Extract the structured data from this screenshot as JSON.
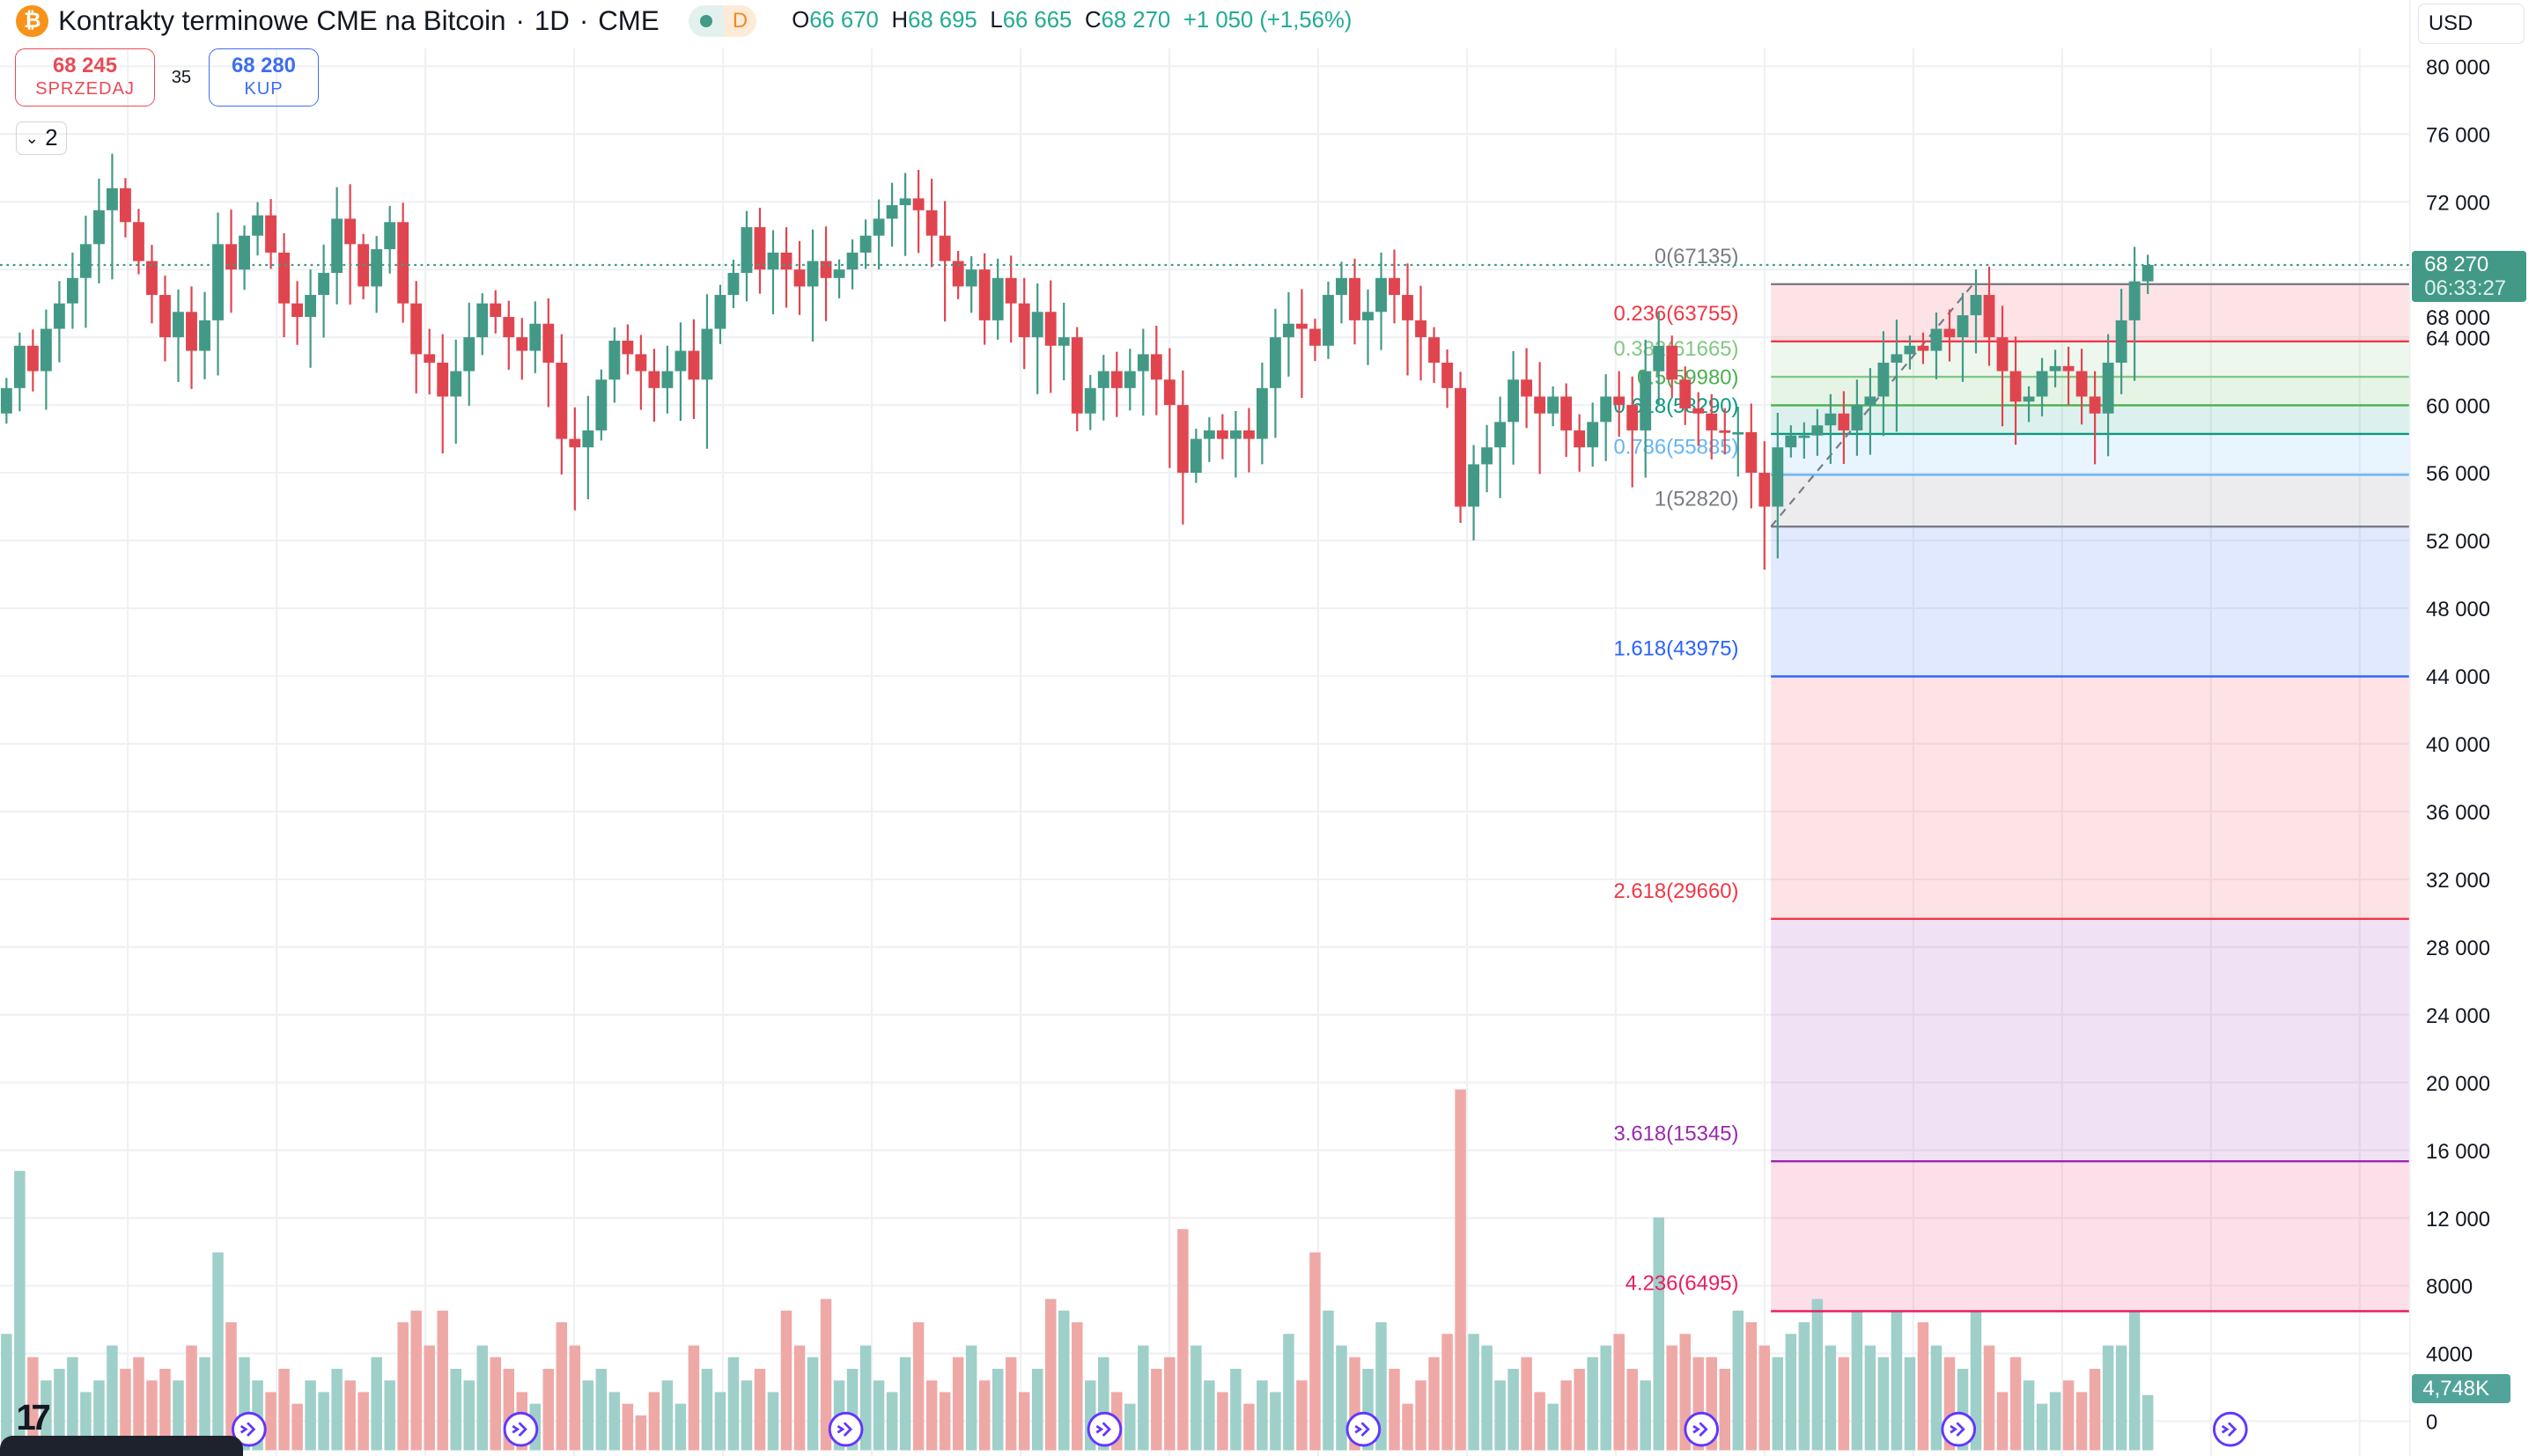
{
  "header": {
    "title": "Kontrakty terminowe CME na Bitcoin",
    "interval": "1D",
    "exchange": "CME",
    "separator": "·",
    "badge_d": "D",
    "ohlc": {
      "o_label": "O",
      "o": "66 670",
      "h_label": "H",
      "h": "68 695",
      "l_label": "L",
      "l": "66 665",
      "c_label": "C",
      "c": "68 270",
      "change": "+1 050 (+1,56%)"
    }
  },
  "trade": {
    "sell_price": "68 245",
    "sell_label": "SPRZEDAJ",
    "spread": "35",
    "buy_price": "68 280",
    "buy_label": "KUP"
  },
  "indicators_toggle": {
    "count": "2"
  },
  "currency": "USD",
  "price_tag": {
    "price": "68 270",
    "countdown": "06:33:27"
  },
  "volume_tag": "4,748K",
  "colors": {
    "up": "#429a86",
    "down": "#e0454f",
    "vol_up": "#9fcfc9",
    "vol_down": "#eea9a6",
    "event": "#6236ff"
  },
  "chart_data": {
    "type": "candlestick",
    "title": "Kontrakty terminowe CME na Bitcoin · 1D · CME",
    "ylim": [
      0,
      80000
    ],
    "y_ticks": [
      "80 000",
      "76 000",
      "72 000",
      "68 000",
      "64 000",
      "60 000",
      "56 000",
      "52 000",
      "48 000",
      "44 000",
      "40 000",
      "36 000",
      "32 000",
      "28 000",
      "24 000",
      "20 000",
      "16 000",
      "12 000",
      "8000",
      "4000",
      "0"
    ],
    "y_tick_values": [
      80000,
      76000,
      72000,
      68000,
      64000,
      60000,
      56000,
      52000,
      48000,
      44000,
      40000,
      36000,
      32000,
      28000,
      24000,
      20000,
      16000,
      12000,
      8000,
      4000,
      0
    ],
    "last_price": 68270,
    "close_k": [
      61.0,
      63.5,
      62.0,
      64.5,
      66.0,
      67.5,
      69.5,
      71.5,
      72.8,
      70.8,
      68.5,
      66.5,
      64.0,
      65.5,
      63.2,
      65.0,
      69.5,
      68.0,
      70.0,
      71.2,
      69.0,
      66.0,
      65.2,
      66.5,
      67.8,
      71.0,
      69.5,
      67.0,
      69.2,
      70.8,
      66.0,
      63.0,
      62.5,
      60.5,
      62.0,
      64.0,
      66.0,
      65.2,
      64.0,
      63.2,
      64.8,
      62.5,
      58.0,
      57.5,
      58.5,
      61.5,
      63.8,
      63.0,
      62.0,
      61.0,
      62.0,
      63.2,
      61.5,
      64.5,
      66.5,
      67.8,
      70.5,
      68.0,
      69.0,
      68.0,
      67.0,
      68.5,
      67.5,
      68.0,
      69.0,
      70.0,
      71.0,
      71.8,
      72.2,
      71.5,
      70.0,
      68.5,
      67.0,
      68.0,
      65.0,
      67.5,
      66.0,
      64.0,
      65.5,
      63.5,
      64.0,
      59.5,
      61.0,
      62.0,
      61.0,
      62.0,
      63.0,
      61.5,
      60.0,
      56.0,
      58.0,
      58.5,
      58.0,
      58.5,
      58.0,
      61.0,
      64.0,
      64.8,
      64.5,
      63.5,
      66.5,
      67.5,
      65.0,
      65.5,
      67.5,
      66.5,
      65.0,
      64.0,
      62.5,
      61.0,
      54.0,
      56.5,
      57.5,
      59.0,
      61.5,
      60.5,
      59.5,
      60.5,
      58.5,
      57.5,
      59.0,
      60.5,
      60.0,
      58.5,
      62.0,
      63.5,
      61.5,
      59.8,
      59.5,
      58.5,
      58.4,
      58.4,
      56.0,
      54.0,
      57.5,
      58.2,
      58.2,
      58.8,
      59.5,
      58.5,
      60.0,
      60.5,
      62.5,
      63.0,
      63.5,
      63.2,
      64.5,
      64.0,
      65.3,
      66.5,
      64.0,
      62.0,
      60.2,
      60.5,
      62.0,
      62.3,
      62.0,
      60.5,
      59.5,
      62.5,
      65.0,
      67.3,
      68.27
    ],
    "volume_k": [
      10,
      24,
      8,
      6,
      7,
      8,
      5,
      6,
      9,
      7,
      8,
      6,
      7,
      6,
      9,
      8,
      17,
      11,
      8,
      6,
      5,
      7,
      4,
      6,
      5,
      7,
      6,
      5,
      8,
      6,
      11,
      12,
      9,
      12,
      7,
      6,
      9,
      8,
      7,
      5,
      4,
      7,
      11,
      9,
      6,
      7,
      5,
      4,
      3,
      5,
      6,
      4,
      9,
      7,
      5,
      8,
      6,
      7,
      5,
      12,
      9,
      8,
      13,
      6,
      7,
      9,
      6,
      5,
      8,
      11,
      6,
      5,
      8,
      9,
      6,
      7,
      8,
      5,
      7,
      13,
      12,
      11,
      6,
      8,
      5,
      4,
      9,
      7,
      8,
      19,
      9,
      6,
      5,
      7,
      4,
      6,
      5,
      10,
      6,
      17,
      12,
      9,
      8,
      7,
      11,
      7,
      4,
      6,
      8,
      10,
      31,
      10,
      9,
      6,
      7,
      8,
      5,
      4,
      6,
      7,
      8,
      9,
      10,
      7,
      6,
      20,
      9,
      10,
      8,
      8,
      7,
      12,
      11,
      9,
      8,
      10,
      11,
      13,
      9,
      8,
      12,
      9,
      8,
      12,
      8,
      11,
      9,
      8,
      7,
      12,
      9,
      5,
      8,
      6,
      4,
      5,
      6,
      5,
      7,
      9,
      9,
      12,
      4.748
    ],
    "fibonacci": [
      {
        "ratio": "0",
        "price": 67135,
        "label": "0(67135)",
        "color": "#787b86"
      },
      {
        "ratio": "0.236",
        "price": 63755,
        "label": "0.236(63755)",
        "color": "#f23645"
      },
      {
        "ratio": "0.382",
        "price": 61665,
        "label": "0.382(61665)",
        "color": "#81c784"
      },
      {
        "ratio": "0.5",
        "price": 59980,
        "label": "0.5(59980)",
        "color": "#4caf50"
      },
      {
        "ratio": "0.618",
        "price": 58290,
        "label": "0.618(58290)",
        "color": "#089981"
      },
      {
        "ratio": "0.786",
        "price": 55885,
        "label": "0.786(55885)",
        "color": "#64b5f6"
      },
      {
        "ratio": "1",
        "price": 52820,
        "label": "1(52820)",
        "color": "#787b86"
      },
      {
        "ratio": "1.618",
        "price": 43975,
        "label": "1.618(43975)",
        "color": "#2962ff"
      },
      {
        "ratio": "2.618",
        "price": 29660,
        "label": "2.618(29660)",
        "color": "#f23645"
      },
      {
        "ratio": "3.618",
        "price": 15345,
        "label": "3.618(15345)",
        "color": "#9c27b0"
      },
      {
        "ratio": "4.236",
        "price": 6495,
        "label": "4.236(6495)",
        "color": "#e91e63"
      }
    ],
    "event_count": 8
  }
}
